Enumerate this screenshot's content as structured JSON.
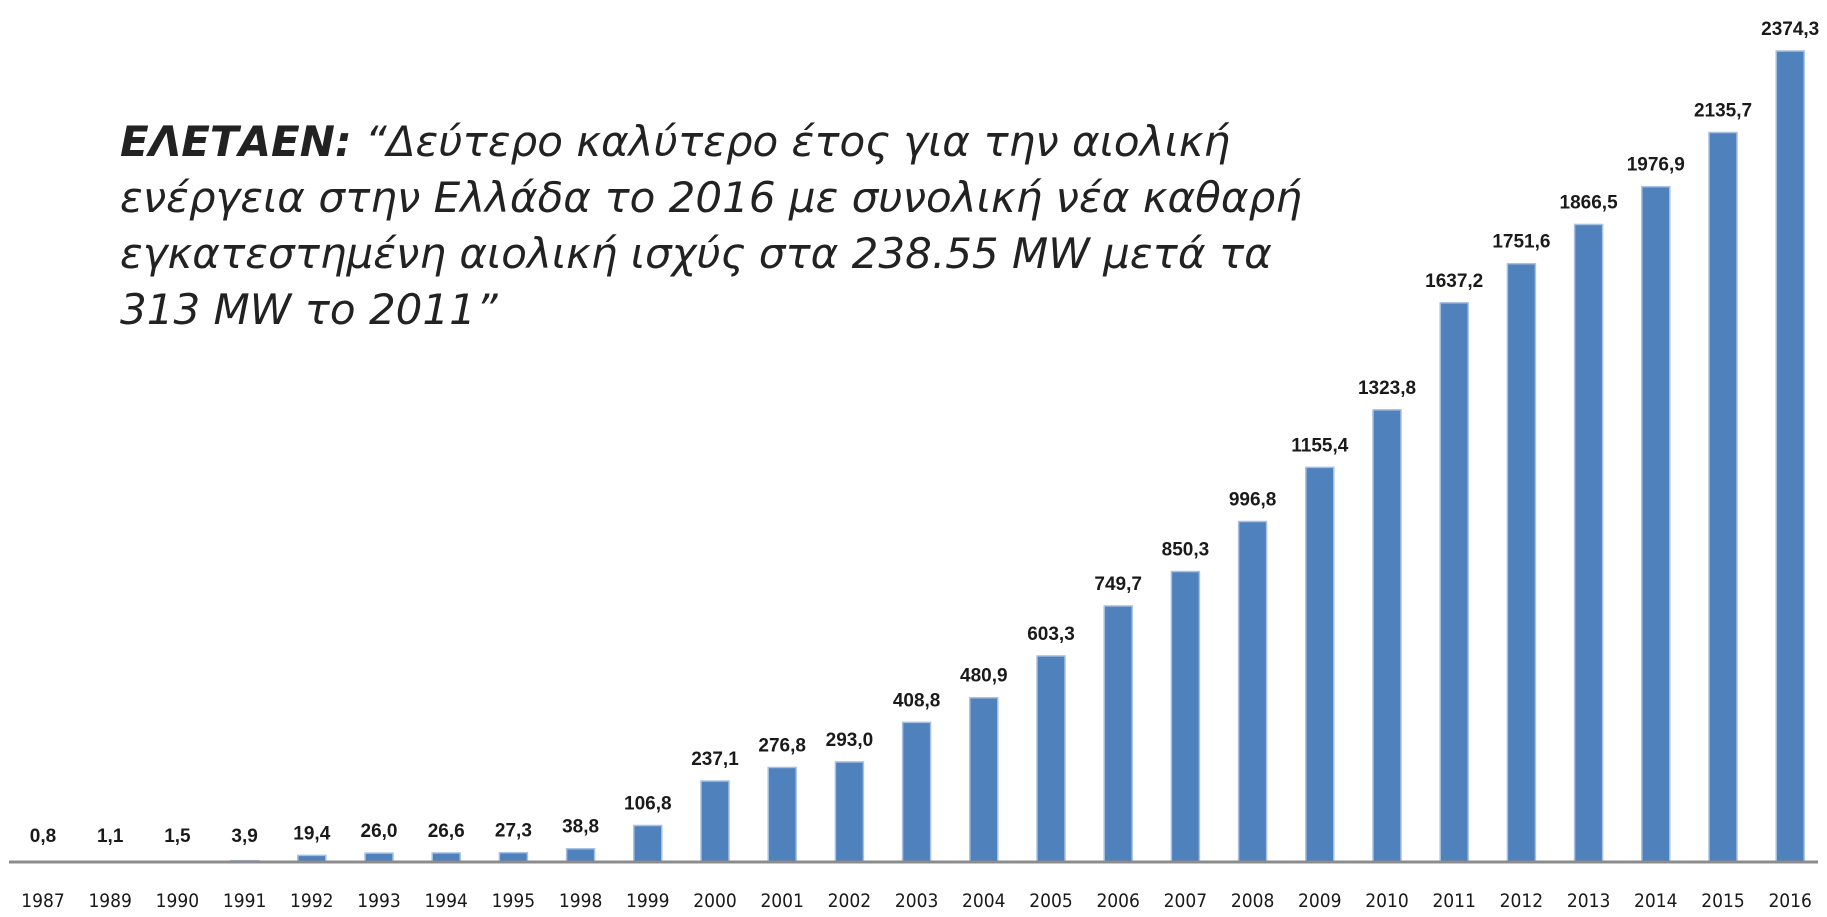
{
  "chart_data": {
    "type": "bar",
    "annotation_source": "ΕΛΕΤΑΕΝ:",
    "annotation_lines": [
      "“Δεύτερο καλύτερο έτος για την αιολική",
      "ενέργεια στην Ελλάδα το 2016 με συνολική νέα καθαρή",
      "εγκατεστημένη αιολική ισχύς στα 238.55 MW μετά τα",
      "313 MW το 2011”"
    ],
    "categories": [
      "1987",
      "1989",
      "1990",
      "1991",
      "1992",
      "1993",
      "1994",
      "1995",
      "1998",
      "1999",
      "2000",
      "2001",
      "2002",
      "2003",
      "2004",
      "2005",
      "2006",
      "2007",
      "2008",
      "2009",
      "2010",
      "2011",
      "2012",
      "2013",
      "2014",
      "2015",
      "2016"
    ],
    "values": [
      0.8,
      1.1,
      1.5,
      3.9,
      19.4,
      26.0,
      26.6,
      27.3,
      38.8,
      106.8,
      237.1,
      276.8,
      293.0,
      408.8,
      480.9,
      603.3,
      749.7,
      850.3,
      996.8,
      1155.4,
      1323.8,
      1637.2,
      1751.6,
      1866.5,
      1976.9,
      2135.7,
      2374.3
    ],
    "value_labels": [
      "0,8",
      "1,1",
      "1,5",
      "3,9",
      "19,4",
      "26,0",
      "26,6",
      "27,3",
      "38,8",
      "106,8",
      "237,1",
      "276,8",
      "293,0",
      "408,8",
      "480,9",
      "603,3",
      "749,7",
      "850,3",
      "996,8",
      "1155,4",
      "1323,8",
      "1637,2",
      "1751,6",
      "1866,5",
      "1976,9",
      "2135,7",
      "2374,3"
    ],
    "color": "#4f81bd"
  }
}
